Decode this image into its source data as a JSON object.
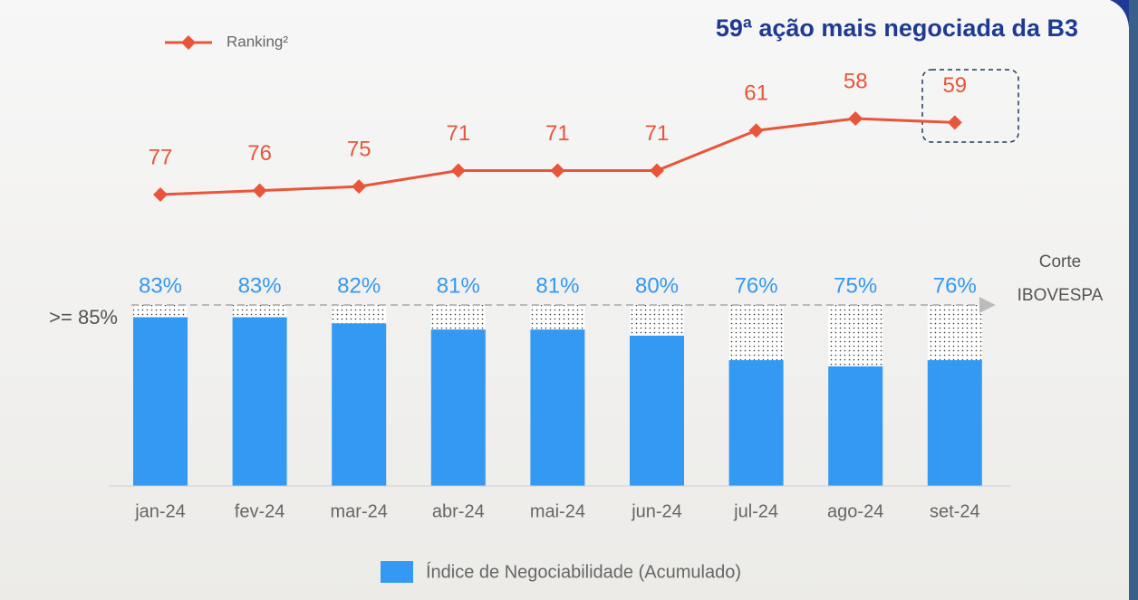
{
  "chart_data": [
    {
      "type": "line",
      "title": "59ª ação mais negociada da B3",
      "series": [
        {
          "name": "Ranking²",
          "color": "#e8553a",
          "values": [
            77,
            76,
            75,
            71,
            71,
            71,
            61,
            58,
            59
          ]
        }
      ]
    },
    {
      "type": "bar",
      "categories": [
        "jan-24",
        "fev-24",
        "mar-24",
        "abr-24",
        "mai-24",
        "jun-24",
        "jul-24",
        "ago-24",
        "set-24"
      ],
      "series": [
        {
          "name": "Índice de Negociabilidade (Acumulado)",
          "color": "#3399f3",
          "values": [
            83,
            83,
            82,
            81,
            81,
            80,
            76,
            75,
            76
          ],
          "value_labels": [
            "83%",
            "83%",
            "82%",
            "81%",
            "81%",
            "80%",
            "76%",
            "75%",
            "76%"
          ]
        }
      ],
      "ylim": [
        55.5,
        85
      ],
      "threshold": {
        "value": 85,
        "label": ">= 85%"
      },
      "threshold_annotation": [
        "Corte",
        "IBOVESPA"
      ]
    }
  ]
}
